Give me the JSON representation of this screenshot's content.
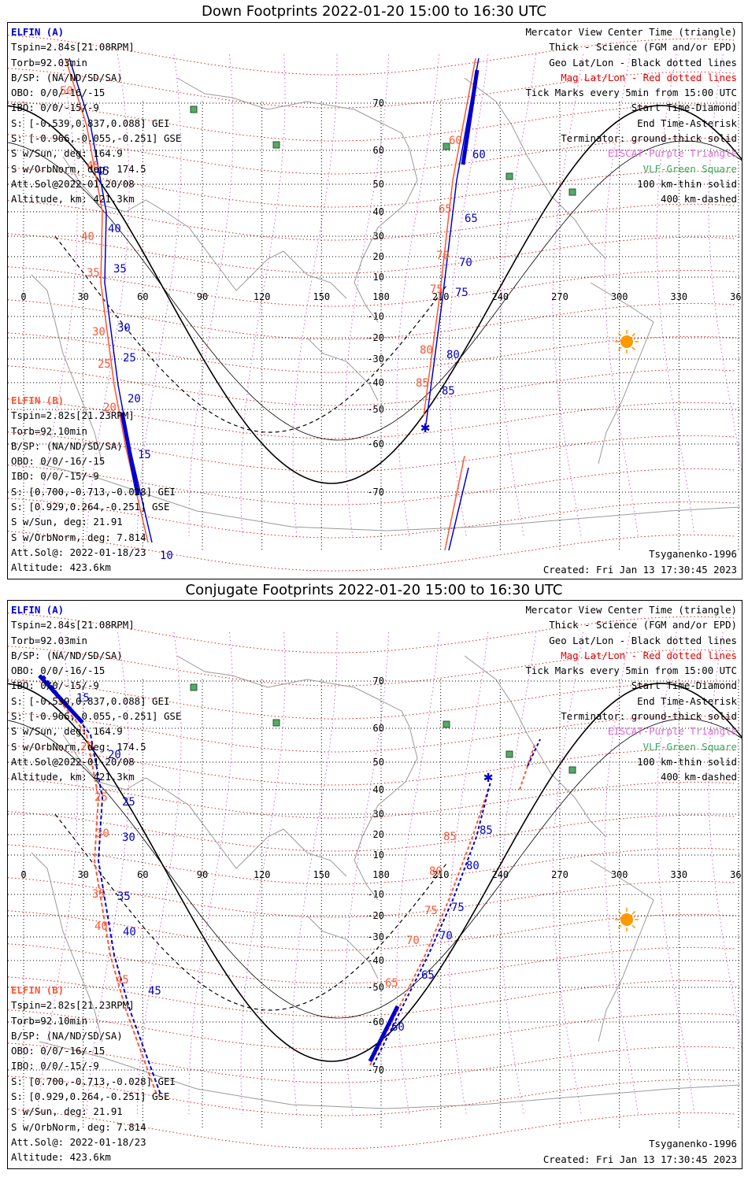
{
  "panels": [
    {
      "title": "Down Footprints 2022-01-20 15:00 to 16:30 UTC",
      "sat_a": {
        "name": "ELFIN (A)",
        "lines": [
          "Tspin=2.84s[21.08RPM]",
          "Torb=92.03min",
          "B/SP: (NA/ND/SD/SA)",
          "OBO: 0/0/-16/-15",
          "IBO: 0/0/-15/-9",
          "S: [-0.539,0.837,0.088] GEI",
          "S: [-0.966,-0.055,-0.251] GSE",
          "S w/Sun, deg: 164.9",
          "S w/OrbNorm, deg: 174.5",
          "Att.Sol@2022-01-20/08",
          "Altitude, km: 421.3km"
        ]
      },
      "sat_b": {
        "name": "ELFIN (B)",
        "lines": [
          "Tspin=2.82s[21.23RPM]",
          "Torb=92.10min",
          "B/SP: (NA/ND/SD/SA)",
          "OBO: 0/0/-16/-15",
          "IBO: 0/0/-15/-9",
          "S: [0.700,-0.713,-0.028] GEI",
          "S: [0.929,0.264,-0.251] GSE",
          "S w/Sun, deg: 21.91",
          "S w/OrbNorm, deg: 7.814",
          "Att.Sol@: 2022-01-18/23",
          "Altitude: 423.6km"
        ]
      },
      "legend": [
        "Mercator View Center Time (triangle)",
        "Thick - Science (FGM and/or EPD)",
        "Geo Lat/Lon - Black dotted lines",
        "Mag Lat/Lon - Red dotted lines",
        "Tick Marks every 5min from 15:00 UTC",
        "Start Time-Diamond",
        "End Time-Asterisk",
        "Terminator: ground-thick solid",
        "EISCAT-Purple Triangle",
        "VLF-Green Square",
        "100 km-thin solid",
        "400 km-dashed"
      ],
      "model": "Tsyganenko-1996",
      "created": "Created: Fri Jan 13 17:30:45 2023",
      "blue_ticks": [
        [
          "45",
          112,
          193
        ],
        [
          "40",
          127,
          266
        ],
        [
          "35",
          134,
          317
        ],
        [
          "30",
          139,
          392
        ],
        [
          "25",
          146,
          430
        ],
        [
          "20",
          152,
          482
        ],
        [
          "15",
          165,
          553
        ],
        [
          "10",
          193,
          681
        ],
        [
          "60",
          590,
          172
        ],
        [
          "65",
          580,
          253
        ],
        [
          "70",
          573,
          309
        ],
        [
          "75",
          568,
          347
        ],
        [
          "80",
          557,
          426
        ],
        [
          "85",
          551,
          472
        ]
      ],
      "orange_ticks": [
        [
          "50",
          66,
          91
        ],
        [
          "45",
          100,
          186
        ],
        [
          "40",
          93,
          276
        ],
        [
          "35",
          100,
          322
        ],
        [
          "30",
          107,
          397
        ],
        [
          "25",
          114,
          438
        ],
        [
          "20",
          121,
          493
        ],
        [
          "60",
          560,
          154
        ],
        [
          "65",
          547,
          241
        ],
        [
          "70",
          544,
          300
        ],
        [
          "75",
          536,
          343
        ],
        [
          "80",
          523,
          420
        ],
        [
          "85",
          518,
          462
        ]
      ]
    },
    {
      "title": "Conjugate Footprints 2022-01-20 15:00 to 16:30 UTC",
      "sat_a": {
        "name": "ELFIN (A)",
        "lines": [
          "Tspin=2.84s[21.08RPM]",
          "Torb=92.03min",
          "B/SP: (NA/ND/SD/SA)",
          "OBO: 0/0/-16/-15",
          "IBO: 0/0/-15/-9",
          "S: [-0.539,0.837,0.088] GEI",
          "S: [-0.966,-0.055,-0.251] GSE",
          "S w/Sun, deg: 164.9",
          "S w/OrbNorm, deg: 174.5",
          "Att.Sol@2022-01-20/08",
          "Altitude, km: 421.3km"
        ]
      },
      "sat_b": {
        "name": "ELFIN (B)",
        "lines": [
          "Tspin=2.82s[21.23RPM]",
          "Torb=92.10min",
          "B/SP: (NA/ND/SD/SA)",
          "OBO: 0/0/-16/-15",
          "IBO: 0/0/-15/-9",
          "S: [0.700,-0.713,-0.028] GEI",
          "S: [0.929,0.264,-0.251] GSE",
          "S w/Sun, deg: 21.91",
          "S w/OrbNorm, deg: 7.814",
          "Att.Sol@: 2022-01-18/23",
          "Altitude: 423.6km"
        ]
      },
      "legend": [
        "Mercator View Center Time (triangle)",
        "Thick - Science (FGM and/or EPD)",
        "Geo Lat/Lon - Black dotted lines",
        "Mag Lat/Lon - Red dotted lines",
        "Tick Marks every 5min from 15:00 UTC",
        "Start Time-Diamond",
        "End Time-Asterisk",
        "Terminator: ground-thick solid",
        "EISCAT-Purple Triangle",
        "VLF-Green Square",
        "100 km-thin solid",
        "400 km-dashed"
      ],
      "model": "Tsyganenko-1996",
      "created": "Created: Fri Jan 13 17:30:45 2023",
      "blue_ticks": [
        [
          "15",
          87,
          128
        ],
        [
          "20",
          127,
          200
        ],
        [
          "25",
          145,
          260
        ],
        [
          "30",
          145,
          305
        ],
        [
          "35",
          139,
          380
        ],
        [
          "40",
          146,
          425
        ],
        [
          "45",
          178,
          500
        ],
        [
          "60",
          487,
          546
        ],
        [
          "65",
          525,
          480
        ],
        [
          "70",
          548,
          430
        ],
        [
          "75",
          563,
          394
        ],
        [
          "80",
          582,
          341
        ],
        [
          "85",
          599,
          296
        ]
      ],
      "orange_ticks": [
        [
          "20",
          92,
          190
        ],
        [
          "25",
          110,
          254
        ],
        [
          "30",
          112,
          300
        ],
        [
          "35",
          107,
          377
        ],
        [
          "40",
          110,
          418
        ],
        [
          "45",
          137,
          486
        ],
        [
          "65",
          479,
          490
        ],
        [
          "70",
          506,
          436
        ],
        [
          "75",
          529,
          398
        ],
        [
          "80",
          535,
          348
        ],
        [
          "85",
          553,
          304
        ]
      ]
    }
  ],
  "map": {
    "lon_labels": [
      "0",
      "30",
      "60",
      "90",
      "120",
      "150",
      "180",
      "210",
      "240",
      "270",
      "300",
      "330",
      "360"
    ],
    "lat_labels": [
      "70",
      "60",
      "50",
      "40",
      "30",
      "20",
      "10",
      "-10",
      "-20",
      "-30",
      "-40",
      "-50",
      "-60",
      "-70"
    ]
  }
}
